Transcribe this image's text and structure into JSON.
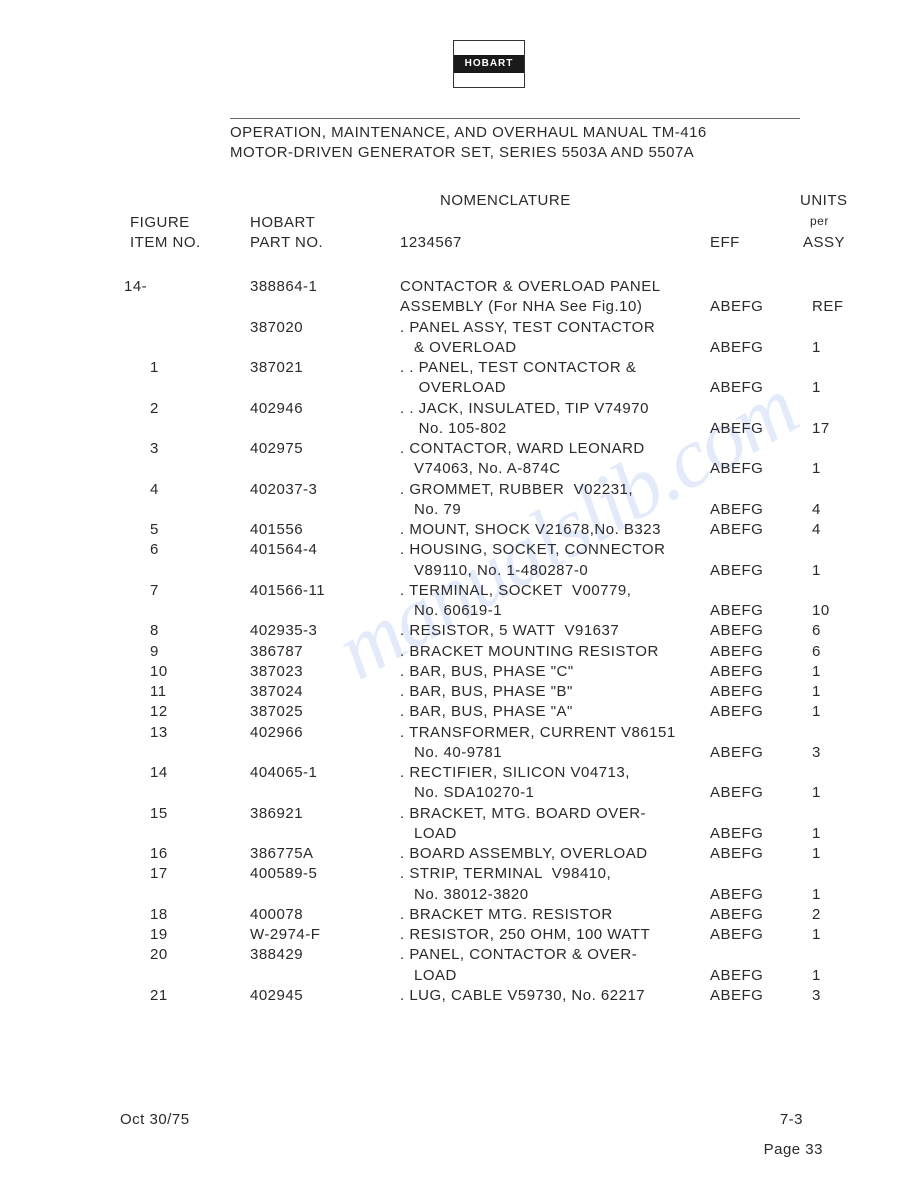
{
  "logo_text": "HOBART",
  "doc_title_line1": "OPERATION, MAINTENANCE, AND OVERHAUL MANUAL TM-416",
  "doc_title_line2": "MOTOR-DRIVEN GENERATOR SET,   SERIES 5503A AND 5507A",
  "headers": {
    "nomenclature": "NOMENCLATURE",
    "units": "UNITS",
    "figure": "FIGURE",
    "hobart": "HOBART",
    "per": "per",
    "item_no": "ITEM NO.",
    "part_no": "PART NO.",
    "cols_1234567": "1234567",
    "eff": "EFF",
    "assy": "ASSY"
  },
  "rows": [
    {
      "item": "14-",
      "part": "388864-1",
      "nomen": "CONTACTOR & OVERLOAD PANEL",
      "eff": "",
      "units": ""
    },
    {
      "item": "",
      "part": "",
      "nomen": "ASSEMBLY (For NHA See Fig.10)",
      "eff": "ABEFG",
      "units": "REF"
    },
    {
      "item": "",
      "part": "387020",
      "nomen": ". PANEL ASSY, TEST CONTACTOR",
      "eff": "",
      "units": ""
    },
    {
      "item": "",
      "part": "",
      "nomen": "   & OVERLOAD",
      "eff": "ABEFG",
      "units": "1"
    },
    {
      "item": "1",
      "part": "387021",
      "nomen": ". . PANEL, TEST CONTACTOR &",
      "eff": "",
      "units": ""
    },
    {
      "item": "",
      "part": "",
      "nomen": "    OVERLOAD",
      "eff": "ABEFG",
      "units": "1"
    },
    {
      "item": "2",
      "part": "402946",
      "nomen": ". . JACK, INSULATED, TIP V74970",
      "eff": "",
      "units": ""
    },
    {
      "item": "",
      "part": "",
      "nomen": "    No. 105-802",
      "eff": "ABEFG",
      "units": "17"
    },
    {
      "item": "3",
      "part": "402975",
      "nomen": ". CONTACTOR, WARD LEONARD",
      "eff": "",
      "units": ""
    },
    {
      "item": "",
      "part": "",
      "nomen": "   V74063, No. A-874C",
      "eff": "ABEFG",
      "units": "1"
    },
    {
      "item": "4",
      "part": "402037-3",
      "nomen": ". GROMMET, RUBBER  V02231,",
      "eff": "",
      "units": ""
    },
    {
      "item": "",
      "part": "",
      "nomen": "   No. 79",
      "eff": "ABEFG",
      "units": "4"
    },
    {
      "item": "5",
      "part": "401556",
      "nomen": ". MOUNT, SHOCK V21678,No. B323",
      "eff": "ABEFG",
      "units": "4"
    },
    {
      "item": "6",
      "part": "401564-4",
      "nomen": ". HOUSING, SOCKET, CONNECTOR",
      "eff": "",
      "units": ""
    },
    {
      "item": "",
      "part": "",
      "nomen": "   V89110, No. 1-480287-0",
      "eff": "ABEFG",
      "units": "1"
    },
    {
      "item": "7",
      "part": "401566-11",
      "nomen": ". TERMINAL, SOCKET  V00779,",
      "eff": "",
      "units": ""
    },
    {
      "item": "",
      "part": "",
      "nomen": "   No. 60619-1",
      "eff": "ABEFG",
      "units": "10"
    },
    {
      "item": "8",
      "part": "402935-3",
      "nomen": ". RESISTOR, 5 WATT  V91637",
      "eff": "ABEFG",
      "units": "6"
    },
    {
      "item": "9",
      "part": "386787",
      "nomen": ". BRACKET MOUNTING RESISTOR",
      "eff": "ABEFG",
      "units": "6"
    },
    {
      "item": "10",
      "part": "387023",
      "nomen": ". BAR, BUS, PHASE \"C\"",
      "eff": "ABEFG",
      "units": "1"
    },
    {
      "item": "11",
      "part": "387024",
      "nomen": ". BAR, BUS, PHASE \"B\"",
      "eff": "ABEFG",
      "units": "1"
    },
    {
      "item": "12",
      "part": "387025",
      "nomen": ". BAR, BUS, PHASE \"A\"",
      "eff": "ABEFG",
      "units": "1"
    },
    {
      "item": "13",
      "part": "402966",
      "nomen": ". TRANSFORMER, CURRENT V86151",
      "eff": "",
      "units": ""
    },
    {
      "item": "",
      "part": "",
      "nomen": "   No. 40-9781",
      "eff": "ABEFG",
      "units": "3"
    },
    {
      "item": "14",
      "part": "404065-1",
      "nomen": ". RECTIFIER, SILICON V04713,",
      "eff": "",
      "units": ""
    },
    {
      "item": "",
      "part": "",
      "nomen": "   No. SDA10270-1",
      "eff": "ABEFG",
      "units": "1"
    },
    {
      "item": "15",
      "part": "386921",
      "nomen": ". BRACKET, MTG. BOARD OVER-",
      "eff": "",
      "units": ""
    },
    {
      "item": "",
      "part": "",
      "nomen": "   LOAD",
      "eff": "ABEFG",
      "units": "1"
    },
    {
      "item": "16",
      "part": "386775A",
      "nomen": ". BOARD ASSEMBLY, OVERLOAD",
      "eff": "ABEFG",
      "units": "1"
    },
    {
      "item": "17",
      "part": "400589-5",
      "nomen": ". STRIP, TERMINAL  V98410,",
      "eff": "",
      "units": ""
    },
    {
      "item": "",
      "part": "",
      "nomen": "   No. 38012-3820",
      "eff": "ABEFG",
      "units": "1"
    },
    {
      "item": "18",
      "part": "400078",
      "nomen": ". BRACKET MTG. RESISTOR",
      "eff": "ABEFG",
      "units": "2"
    },
    {
      "item": "19",
      "part": "W-2974-F",
      "nomen": ". RESISTOR, 250 OHM, 100 WATT",
      "eff": "ABEFG",
      "units": "1"
    },
    {
      "item": "20",
      "part": "388429",
      "nomen": ". PANEL, CONTACTOR & OVER-",
      "eff": "",
      "units": ""
    },
    {
      "item": "",
      "part": "",
      "nomen": "   LOAD",
      "eff": "ABEFG",
      "units": "1"
    },
    {
      "item": "21",
      "part": "402945",
      "nomen": ". LUG, CABLE V59730, No. 62217",
      "eff": "ABEFG",
      "units": "3"
    }
  ],
  "footer": {
    "date": "Oct 30/75",
    "section": "7-3",
    "page": "Page 33"
  },
  "watermark": "manualslib.com"
}
